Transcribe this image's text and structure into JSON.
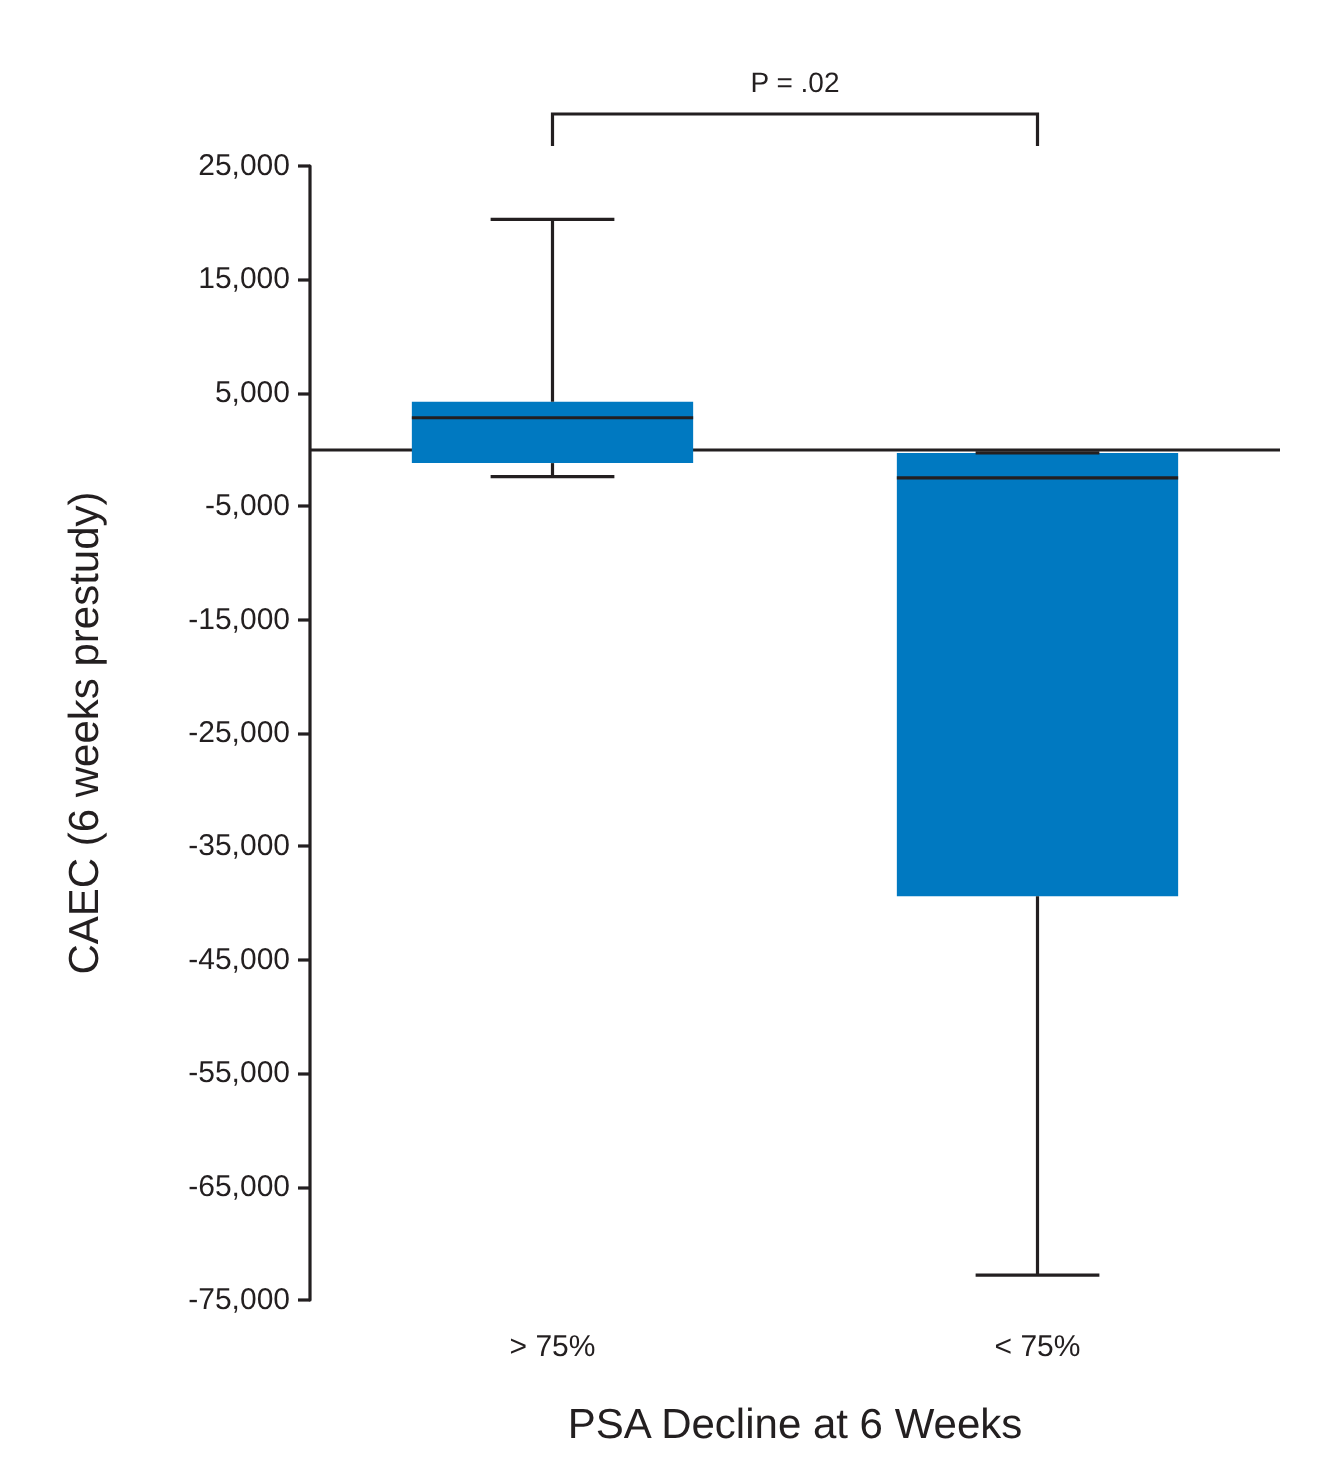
{
  "chart_data": {
    "type": "box",
    "xlabel": "PSA Decline at 6 Weeks",
    "ylabel": "CAEC (6 weeks prestudy)",
    "categories": [
      "> 75%",
      "< 75%"
    ],
    "boxes": [
      {
        "low": -2400,
        "q1": -1200,
        "median": 2800,
        "q3": 4200,
        "high": 20300
      },
      {
        "low": -72800,
        "q1": -39400,
        "median": -2500,
        "q3": -300,
        "high": -300
      }
    ],
    "color": "#0079c1",
    "ylim": [
      -75000,
      25000
    ],
    "yticks": [
      {
        "value": -75000,
        "label": "-75,000"
      },
      {
        "value": -65000,
        "label": "-65,000"
      },
      {
        "value": -55000,
        "label": "-55,000"
      },
      {
        "value": -45000,
        "label": "-45,000"
      },
      {
        "value": -35000,
        "label": "-35,000"
      },
      {
        "value": -25000,
        "label": "-25,000"
      },
      {
        "value": -15000,
        "label": "-15,000"
      },
      {
        "value": -5000,
        "label": "-5,000"
      },
      {
        "value": 5000,
        "label": "5,000"
      },
      {
        "value": 15000,
        "label": "15,000"
      },
      {
        "value": 25000,
        "label": "25,000"
      }
    ],
    "ref_lines": [
      {
        "axis": "y",
        "value": 0,
        "label": null,
        "color": "#231f20"
      }
    ],
    "annotations": [
      "P = .02"
    ],
    "grid": false
  }
}
